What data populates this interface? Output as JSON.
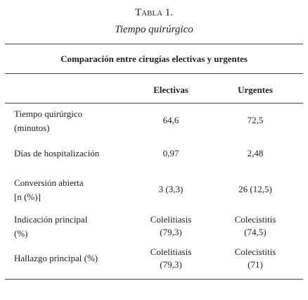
{
  "header": {
    "title": "Tabla 1.",
    "subtitle": "Tiempo quirúrgico"
  },
  "table": {
    "caption": "Comparación entre cirugías electivas y urgentes",
    "columns": [
      "Electivas",
      "Urgentes"
    ],
    "rows": [
      {
        "label": [
          "Tiempo quirúrgico",
          "(minutos)"
        ],
        "cells": [
          [
            "64,6"
          ],
          [
            "72,5"
          ]
        ]
      },
      {
        "label": [
          "Días de hospitalización"
        ],
        "cells": [
          [
            "0,97"
          ],
          [
            "2,48"
          ]
        ]
      },
      {
        "label": [
          "Conversión abierta",
          "[n (%)]"
        ],
        "cells": [
          [
            "3 (3,3)"
          ],
          [
            "26 (12,5)"
          ]
        ]
      },
      {
        "label": [
          "Indicación principal",
          "(%)"
        ],
        "cells": [
          [
            "Colelitiasis",
            "(79,3)"
          ],
          [
            "Colecistitis",
            "(74,5)"
          ]
        ]
      },
      {
        "label": [
          "Hallazgo principal (%)"
        ],
        "cells": [
          [
            "Colelitiasis",
            "(79,3)"
          ],
          [
            "Colecistitis",
            "(71)"
          ]
        ]
      }
    ]
  }
}
